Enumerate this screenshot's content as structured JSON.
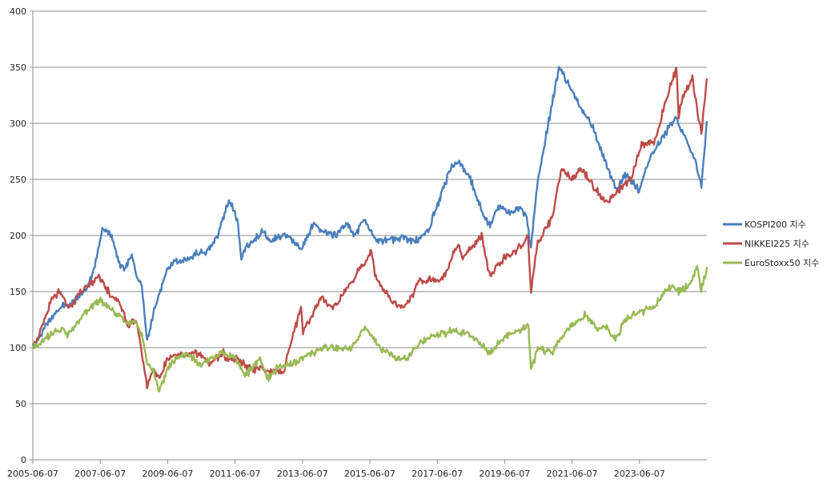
{
  "chart_data": {
    "type": "line",
    "title": "",
    "xlabel": "",
    "ylabel": "",
    "ylim": [
      0,
      400
    ],
    "yticks": [
      0,
      50,
      100,
      150,
      200,
      250,
      300,
      350,
      400
    ],
    "xlim": [
      "2005-06-07",
      "2025-06-07"
    ],
    "xticks": [
      "2005-06-07",
      "2007-06-07",
      "2009-06-07",
      "2011-06-07",
      "2013-06-07",
      "2015-06-07",
      "2017-06-07",
      "2019-06-07",
      "2021-06-07",
      "2023-06-07"
    ],
    "grid": "horizontal",
    "legend_position": "right",
    "series": [
      {
        "name": "KOSPI200 지수",
        "color": "#4a7ebb",
        "x": [
          "2005-06-07",
          "2005-09-01",
          "2006-01-01",
          "2006-05-01",
          "2006-08-01",
          "2007-01-01",
          "2007-04-01",
          "2007-07-01",
          "2007-10-01",
          "2008-01-01",
          "2008-03-01",
          "2008-05-15",
          "2008-07-01",
          "2008-09-01",
          "2008-10-27",
          "2009-01-01",
          "2009-03-01",
          "2009-06-01",
          "2009-09-01",
          "2010-01-01",
          "2010-05-01",
          "2010-08-01",
          "2010-12-01",
          "2011-04-01",
          "2011-07-01",
          "2011-08-15",
          "2011-10-01",
          "2012-01-01",
          "2012-04-01",
          "2012-07-01",
          "2012-10-01",
          "2013-01-01",
          "2013-06-01",
          "2013-10-01",
          "2014-01-01",
          "2014-06-01",
          "2014-10-01",
          "2015-01-01",
          "2015-04-01",
          "2015-08-01",
          "2015-12-01",
          "2016-06-01",
          "2016-11-01",
          "2017-03-01",
          "2017-06-01",
          "2017-11-01",
          "2018-02-01",
          "2018-06-01",
          "2018-10-30",
          "2019-01-01",
          "2019-04-01",
          "2019-08-01",
          "2019-12-01",
          "2020-02-01",
          "2020-03-19",
          "2020-06-01",
          "2020-09-01",
          "2020-12-01",
          "2021-01-15",
          "2021-06-01",
          "2021-09-01",
          "2022-01-01",
          "2022-06-01",
          "2022-10-01",
          "2023-01-01",
          "2023-06-01",
          "2023-10-01",
          "2024-03-01",
          "2024-07-01",
          "2024-12-01",
          "2025-02-01",
          "2025-04-09",
          "2025-06-07"
        ],
        "y": [
          100,
          112,
          128,
          138,
          140,
          152,
          170,
          205,
          200,
          175,
          170,
          185,
          165,
          155,
          105,
          130,
          145,
          170,
          178,
          178,
          185,
          185,
          200,
          232,
          215,
          180,
          190,
          195,
          205,
          195,
          200,
          200,
          188,
          210,
          205,
          200,
          210,
          200,
          215,
          198,
          195,
          198,
          195,
          205,
          225,
          260,
          265,
          250,
          215,
          210,
          225,
          220,
          225,
          215,
          190,
          250,
          290,
          330,
          350,
          330,
          315,
          300,
          265,
          240,
          255,
          240,
          270,
          290,
          305,
          280,
          265,
          245,
          302
        ]
      },
      {
        "name": "NIKKEI225 지수",
        "color": "#be4b48",
        "x": [
          "2005-06-07",
          "2005-09-01",
          "2006-01-01",
          "2006-04-01",
          "2006-07-01",
          "2007-01-01",
          "2007-06-01",
          "2007-09-01",
          "2008-01-01",
          "2008-04-01",
          "2008-07-01",
          "2008-10-27",
          "2009-01-01",
          "2009-03-10",
          "2009-06-01",
          "2009-09-01",
          "2010-01-01",
          "2010-05-01",
          "2010-09-01",
          "2011-02-01",
          "2011-03-15",
          "2011-07-01",
          "2011-11-01",
          "2012-06-01",
          "2012-11-14",
          "2013-01-01",
          "2013-05-22",
          "2013-06-13",
          "2013-12-30",
          "2014-05-01",
          "2014-12-01",
          "2015-06-24",
          "2015-08-01",
          "2016-02-12",
          "2016-06-24",
          "2016-12-01",
          "2017-06-01",
          "2017-09-01",
          "2018-01-23",
          "2018-03-01",
          "2018-10-01",
          "2018-12-25",
          "2019-06-01",
          "2019-12-01",
          "2020-02-15",
          "2020-03-19",
          "2020-06-01",
          "2020-11-01",
          "2021-02-15",
          "2021-06-01",
          "2021-09-14",
          "2022-03-01",
          "2022-06-01",
          "2023-01-01",
          "2023-03-01",
          "2023-07-01",
          "2023-12-01",
          "2024-03-01",
          "2024-07-11",
          "2024-08-05",
          "2024-09-01",
          "2025-01-01",
          "2025-04-07",
          "2025-06-07"
        ],
        "y": [
          100,
          115,
          145,
          150,
          135,
          155,
          162,
          150,
          140,
          120,
          125,
          65,
          80,
          72,
          90,
          95,
          95,
          95,
          85,
          95,
          90,
          90,
          82,
          80,
          77,
          95,
          135,
          115,
          145,
          135,
          160,
          185,
          165,
          140,
          135,
          160,
          160,
          165,
          195,
          180,
          200,
          165,
          180,
          190,
          200,
          150,
          195,
          215,
          260,
          250,
          260,
          240,
          230,
          245,
          250,
          280,
          285,
          315,
          350,
          305,
          320,
          340,
          290,
          340
        ]
      },
      {
        "name": "EuroStoxx50 지수",
        "color": "#98b954",
        "x": [
          "2005-06-07",
          "2005-09-01",
          "2006-01-01",
          "2006-05-01",
          "2006-06-15",
          "2007-01-01",
          "2007-06-01",
          "2007-09-01",
          "2008-01-01",
          "2008-03-15",
          "2008-06-01",
          "2008-09-01",
          "2008-11-01",
          "2009-01-01",
          "2009-03-09",
          "2009-06-01",
          "2009-09-01",
          "2010-01-01",
          "2010-05-25",
          "2010-09-01",
          "2011-02-01",
          "2011-06-01",
          "2011-09-22",
          "2011-12-01",
          "2012-03-01",
          "2012-06-04",
          "2012-09-01",
          "2013-01-01",
          "2013-06-01",
          "2014-01-01",
          "2014-06-01",
          "2014-10-15",
          "2015-01-01",
          "2015-04-15",
          "2015-07-01",
          "2015-09-29",
          "2016-02-11",
          "2016-06-27",
          "2016-12-01",
          "2017-05-01",
          "2017-12-01",
          "2018-06-01",
          "2018-12-27",
          "2019-06-01",
          "2019-12-01",
          "2020-02-19",
          "2020-03-18",
          "2020-06-01",
          "2020-10-30",
          "2021-01-01",
          "2021-06-01",
          "2021-11-01",
          "2022-03-07",
          "2022-06-01",
          "2022-09-29",
          "2023-01-01",
          "2023-06-01",
          "2023-10-26",
          "2024-03-01",
          "2024-06-01",
          "2024-08-05",
          "2024-12-01",
          "2025-03-01",
          "2025-04-07",
          "2025-06-07"
        ],
        "y": [
          100,
          105,
          112,
          118,
          110,
          132,
          142,
          138,
          128,
          120,
          125,
          110,
          85,
          80,
          62,
          80,
          90,
          95,
          85,
          90,
          95,
          92,
          75,
          80,
          90,
          72,
          82,
          85,
          90,
          100,
          100,
          98,
          105,
          120,
          110,
          100,
          92,
          90,
          105,
          110,
          115,
          112,
          95,
          110,
          115,
          122,
          80,
          100,
          95,
          105,
          120,
          130,
          115,
          120,
          108,
          125,
          132,
          135,
          150,
          155,
          150,
          155,
          172,
          150,
          172
        ]
      }
    ]
  }
}
